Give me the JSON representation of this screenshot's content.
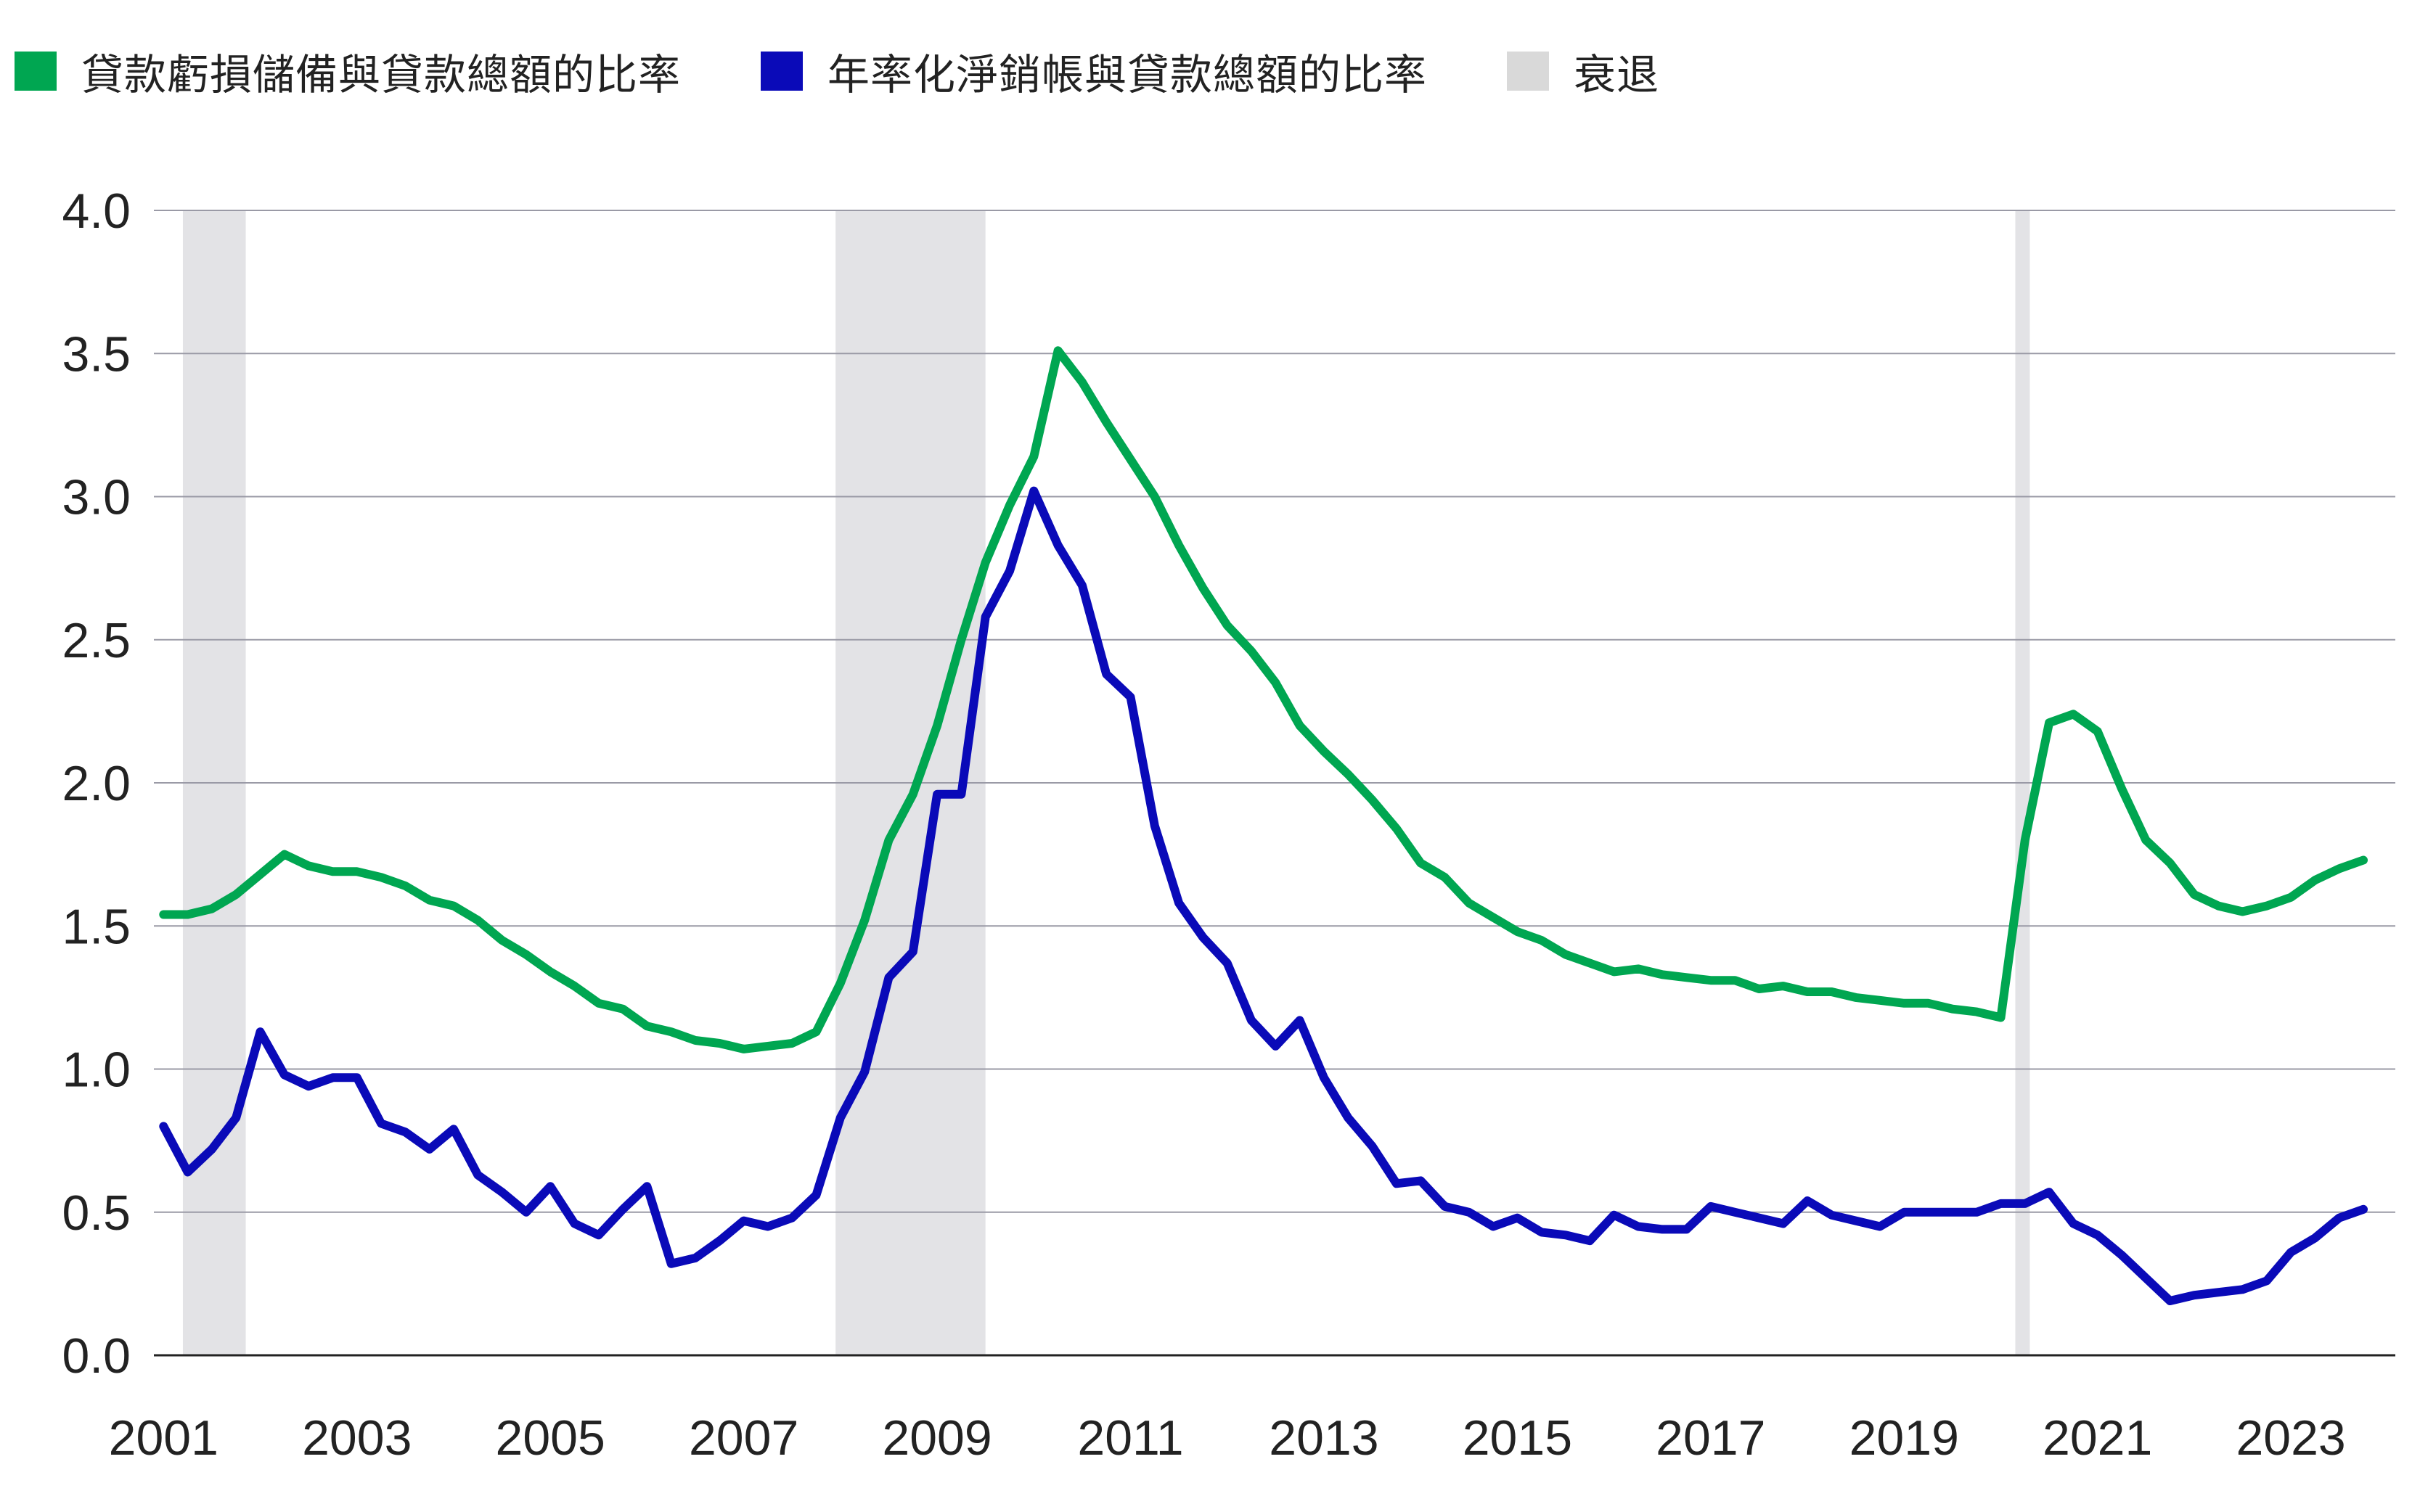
{
  "legend": {
    "items": [
      {
        "label": "貸款虧損儲備與貸款總額的比率",
        "color": "#00a651"
      },
      {
        "label": "年率化淨銷帳與貸款總額的比率",
        "color": "#0a0ab8"
      },
      {
        "label": "衰退",
        "color": "#d9d9d9"
      }
    ]
  },
  "chart_data": {
    "type": "line",
    "x_ticks": [
      "2001",
      "2003",
      "2005",
      "2007",
      "2009",
      "2011",
      "2013",
      "2015",
      "2017",
      "2019",
      "2021",
      "2023"
    ],
    "y_ticks": [
      "0.0",
      "0.5",
      "1.0",
      "1.5",
      "2.0",
      "2.5",
      "3.0",
      "3.5",
      "4.0"
    ],
    "xlim": [
      2001.0,
      2023.75
    ],
    "ylim": [
      0,
      4.0
    ],
    "grid": true,
    "legend_position": "top-left",
    "recessions": [
      {
        "start": 2001.2,
        "end": 2001.85
      },
      {
        "start": 2007.95,
        "end": 2009.5
      },
      {
        "start": 2020.15,
        "end": 2020.3
      }
    ],
    "series": [
      {
        "name": "貸款虧損儲備與貸款總額的比率",
        "color": "#00a651",
        "x": [
          2001.0,
          2001.25,
          2001.5,
          2001.75,
          2002.0,
          2002.25,
          2002.5,
          2002.75,
          2003.0,
          2003.25,
          2003.5,
          2003.75,
          2004.0,
          2004.25,
          2004.5,
          2004.75,
          2005.0,
          2005.25,
          2005.5,
          2005.75,
          2006.0,
          2006.25,
          2006.5,
          2006.75,
          2007.0,
          2007.25,
          2007.5,
          2007.75,
          2008.0,
          2008.25,
          2008.5,
          2008.75,
          2009.0,
          2009.25,
          2009.5,
          2009.75,
          2010.0,
          2010.25,
          2010.5,
          2010.75,
          2011.0,
          2011.25,
          2011.5,
          2011.75,
          2012.0,
          2012.25,
          2012.5,
          2012.75,
          2013.0,
          2013.25,
          2013.5,
          2013.75,
          2014.0,
          2014.25,
          2014.5,
          2014.75,
          2015.0,
          2015.25,
          2015.5,
          2015.75,
          2016.0,
          2016.25,
          2016.5,
          2016.75,
          2017.0,
          2017.25,
          2017.5,
          2017.75,
          2018.0,
          2018.25,
          2018.5,
          2018.75,
          2019.0,
          2019.25,
          2019.5,
          2019.75,
          2020.0,
          2020.25,
          2020.5,
          2020.75,
          2021.0,
          2021.25,
          2021.5,
          2021.75,
          2022.0,
          2022.25,
          2022.5,
          2022.75,
          2023.0,
          2023.25,
          2023.5,
          2023.75
        ],
        "values": [
          1.54,
          1.54,
          1.56,
          1.61,
          1.68,
          1.75,
          1.71,
          1.69,
          1.69,
          1.67,
          1.64,
          1.59,
          1.57,
          1.52,
          1.45,
          1.4,
          1.34,
          1.29,
          1.23,
          1.21,
          1.15,
          1.13,
          1.1,
          1.09,
          1.07,
          1.08,
          1.09,
          1.13,
          1.3,
          1.52,
          1.8,
          1.96,
          2.2,
          2.5,
          2.77,
          2.97,
          3.14,
          3.51,
          3.4,
          3.26,
          3.13,
          3.0,
          2.83,
          2.68,
          2.55,
          2.46,
          2.35,
          2.2,
          2.11,
          2.03,
          1.94,
          1.84,
          1.72,
          1.67,
          1.58,
          1.53,
          1.48,
          1.45,
          1.4,
          1.37,
          1.34,
          1.35,
          1.33,
          1.32,
          1.31,
          1.31,
          1.28,
          1.29,
          1.27,
          1.27,
          1.25,
          1.24,
          1.23,
          1.23,
          1.21,
          1.2,
          1.18,
          1.8,
          2.21,
          2.24,
          2.18,
          1.98,
          1.8,
          1.72,
          1.61,
          1.57,
          1.55,
          1.57,
          1.6,
          1.66,
          1.7,
          1.73
        ]
      },
      {
        "name": "年率化淨銷帳與貸款總額的比率",
        "color": "#0a0ab8",
        "x": [
          2001.0,
          2001.25,
          2001.5,
          2001.75,
          2002.0,
          2002.25,
          2002.5,
          2002.75,
          2003.0,
          2003.25,
          2003.5,
          2003.75,
          2004.0,
          2004.25,
          2004.5,
          2004.75,
          2005.0,
          2005.25,
          2005.5,
          2005.75,
          2006.0,
          2006.25,
          2006.5,
          2006.75,
          2007.0,
          2007.25,
          2007.5,
          2007.75,
          2008.0,
          2008.25,
          2008.5,
          2008.75,
          2009.0,
          2009.25,
          2009.5,
          2009.75,
          2010.0,
          2010.25,
          2010.5,
          2010.75,
          2011.0,
          2011.25,
          2011.5,
          2011.75,
          2012.0,
          2012.25,
          2012.5,
          2012.75,
          2013.0,
          2013.25,
          2013.5,
          2013.75,
          2014.0,
          2014.25,
          2014.5,
          2014.75,
          2015.0,
          2015.25,
          2015.5,
          2015.75,
          2016.0,
          2016.25,
          2016.5,
          2016.75,
          2017.0,
          2017.25,
          2017.5,
          2017.75,
          2018.0,
          2018.25,
          2018.5,
          2018.75,
          2019.0,
          2019.25,
          2019.5,
          2019.75,
          2020.0,
          2020.25,
          2020.5,
          2020.75,
          2021.0,
          2021.25,
          2021.5,
          2021.75,
          2022.0,
          2022.25,
          2022.5,
          2022.75,
          2023.0,
          2023.25,
          2023.5,
          2023.75
        ],
        "values": [
          0.8,
          0.64,
          0.72,
          0.83,
          1.13,
          0.98,
          0.94,
          0.97,
          0.97,
          0.81,
          0.78,
          0.72,
          0.79,
          0.63,
          0.57,
          0.5,
          0.59,
          0.46,
          0.42,
          0.51,
          0.59,
          0.32,
          0.34,
          0.4,
          0.47,
          0.45,
          0.48,
          0.56,
          0.83,
          0.99,
          1.32,
          1.41,
          1.96,
          1.96,
          2.58,
          2.74,
          3.02,
          2.83,
          2.69,
          2.38,
          2.3,
          1.85,
          1.58,
          1.46,
          1.37,
          1.17,
          1.08,
          1.17,
          0.97,
          0.83,
          0.73,
          0.6,
          0.61,
          0.52,
          0.5,
          0.45,
          0.48,
          0.43,
          0.42,
          0.4,
          0.49,
          0.45,
          0.44,
          0.44,
          0.52,
          0.5,
          0.48,
          0.46,
          0.54,
          0.49,
          0.47,
          0.45,
          0.5,
          0.5,
          0.5,
          0.5,
          0.53,
          0.53,
          0.57,
          0.46,
          0.42,
          0.35,
          0.27,
          0.19,
          0.21,
          0.22,
          0.23,
          0.26,
          0.36,
          0.41,
          0.48,
          0.51
        ]
      }
    ]
  }
}
